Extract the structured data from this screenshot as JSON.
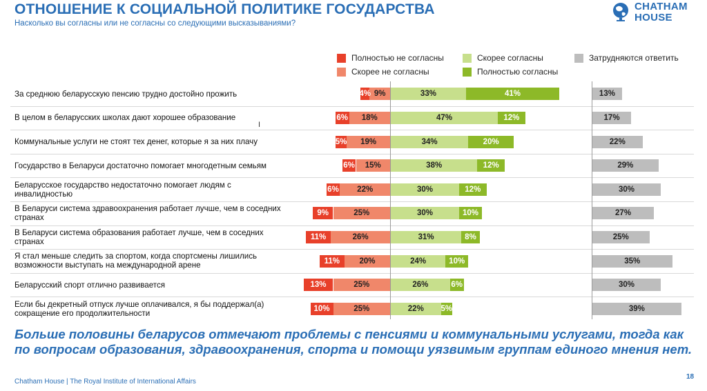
{
  "header": {
    "title": "ОТНОШЕНИЕ К СОЦИАЛЬНОЙ ПОЛИТИКЕ ГОСУДАРСТВА",
    "subtitle": "Насколько вы согласны или не согласны со следующими высказываниями?"
  },
  "logo": {
    "line1": "CHATHAM",
    "line2": "HOUSE",
    "icon": "globe-icon",
    "color": "#2a6eb5"
  },
  "legend": [
    {
      "label": "Полностью не согласны",
      "color": "#e8402a"
    },
    {
      "label": "Скорее согласны",
      "color": "#c7df8c"
    },
    {
      "label": "Затрудняются ответить",
      "color": "#bdbdbd"
    },
    {
      "label": "Скорее не согласны",
      "color": "#f0876a"
    },
    {
      "label": "Полностью согласны",
      "color": "#8db928"
    }
  ],
  "chart_data": {
    "type": "bar",
    "stacked": "diverging",
    "categories": [
      "За среднюю беларусскую пенсию трудно достойно прожить",
      "В целом в беларусских школах дают хорошее образование",
      "Коммунальные услуги не стоят тех денег, которые я за них плачу",
      "Государство в Беларуси достаточно помогает многодетным семьям",
      "Беларусское государство недостаточно помогает людям с инвалидностью",
      "В Беларуси система здравоохранения работает лучше, чем в соседних странах",
      "В Беларуси система образования работает лучше, чем в соседних странах",
      "Я стал меньше следить за спортом, когда спортсмены лишились возможности выступать на международной арене",
      "Беларусский спорт отлично развивается",
      "Если бы декретный отпуск лучше оплачивался, я бы поддержал(а) сокращение его продолжительности"
    ],
    "series": [
      {
        "name": "Полностью не согласны",
        "values": [
          4,
          6,
          5,
          6,
          6,
          9,
          11,
          11,
          13,
          10
        ]
      },
      {
        "name": "Скорее не согласны",
        "values": [
          9,
          18,
          19,
          15,
          22,
          25,
          26,
          20,
          25,
          25
        ]
      },
      {
        "name": "Скорее согласны",
        "values": [
          33,
          47,
          34,
          38,
          30,
          30,
          31,
          24,
          26,
          22
        ]
      },
      {
        "name": "Полностью согласны",
        "values": [
          41,
          12,
          20,
          12,
          12,
          10,
          8,
          10,
          6,
          5
        ]
      },
      {
        "name": "Затрудняются ответить",
        "values": [
          13,
          17,
          22,
          29,
          30,
          27,
          25,
          35,
          30,
          39
        ]
      }
    ],
    "value_suffix": "%",
    "legend_position": "top"
  },
  "conclusion": "Больше половины беларусов отмечают проблемы с пенсиями и коммунальными услугами, тогда как по вопросам образования, здравоохранения, спорта и помощи уязвимым группам единого мнения нет.",
  "footer": {
    "source": "Chatham House  |  The Royal Institute of International Affairs",
    "page": "18"
  }
}
